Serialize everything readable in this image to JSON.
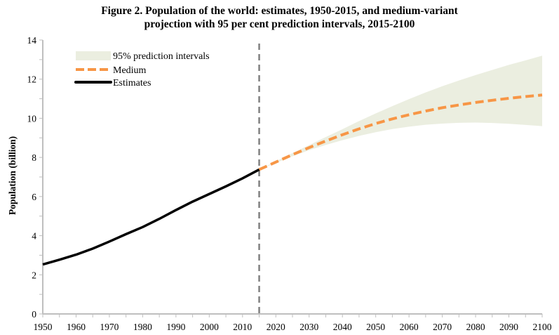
{
  "chart_data": {
    "type": "line",
    "title": "Figure 2.  Population of the world: estimates, 1950-2015, and medium-variant",
    "subtitle": "projection with 95 per cent prediction intervals, 2015-2100",
    "xlabel": "",
    "ylabel": "Population (billion)",
    "xlim": [
      1950,
      2100
    ],
    "ylim": [
      0,
      14
    ],
    "x_ticks": [
      "1950",
      "1960",
      "1970",
      "1980",
      "1990",
      "2000",
      "2010",
      "2020",
      "2030",
      "2040",
      "2050",
      "2060",
      "2070",
      "2080",
      "2090",
      "2100"
    ],
    "y_ticks": [
      "0",
      "2",
      "4",
      "6",
      "8",
      "10",
      "12",
      "14"
    ],
    "grid": false,
    "divider_year": 2015,
    "legend_position": "top-left",
    "legend": [
      {
        "label": "95% prediction intervals",
        "kind": "band",
        "color": "#ebeee0"
      },
      {
        "label": "Medium",
        "kind": "dashed",
        "color": "#f79646"
      },
      {
        "label": "Estimates",
        "kind": "solid",
        "color": "#000000"
      }
    ],
    "series": [
      {
        "name": "Estimates",
        "color": "#000000",
        "x": [
          1950,
          1955,
          1960,
          1965,
          1970,
          1975,
          1980,
          1985,
          1990,
          1995,
          2000,
          2005,
          2010,
          2015
        ],
        "values": [
          2.53,
          2.77,
          3.03,
          3.34,
          3.7,
          4.08,
          4.44,
          4.86,
          5.31,
          5.74,
          6.13,
          6.52,
          6.93,
          7.38
        ]
      },
      {
        "name": "Medium",
        "color": "#f79646",
        "x": [
          2015,
          2020,
          2025,
          2030,
          2035,
          2040,
          2045,
          2050,
          2055,
          2060,
          2065,
          2070,
          2075,
          2080,
          2085,
          2090,
          2095,
          2100
        ],
        "values": [
          7.38,
          7.76,
          8.14,
          8.5,
          8.84,
          9.16,
          9.46,
          9.73,
          9.97,
          10.18,
          10.37,
          10.54,
          10.68,
          10.81,
          10.92,
          11.02,
          11.11,
          11.19
        ]
      },
      {
        "name": "95% prediction intervals",
        "color": "#ebeee0",
        "x": [
          2015,
          2020,
          2025,
          2030,
          2035,
          2040,
          2045,
          2050,
          2055,
          2060,
          2065,
          2070,
          2075,
          2080,
          2085,
          2090,
          2095,
          2100
        ],
        "lower": [
          7.38,
          7.72,
          8.06,
          8.37,
          8.64,
          8.88,
          9.1,
          9.29,
          9.45,
          9.57,
          9.67,
          9.73,
          9.77,
          9.78,
          9.76,
          9.72,
          9.66,
          9.6
        ],
        "upper": [
          7.38,
          7.8,
          8.22,
          8.63,
          9.04,
          9.44,
          9.86,
          10.25,
          10.62,
          10.98,
          11.32,
          11.64,
          11.93,
          12.21,
          12.47,
          12.73,
          12.96,
          13.2
        ]
      }
    ]
  }
}
